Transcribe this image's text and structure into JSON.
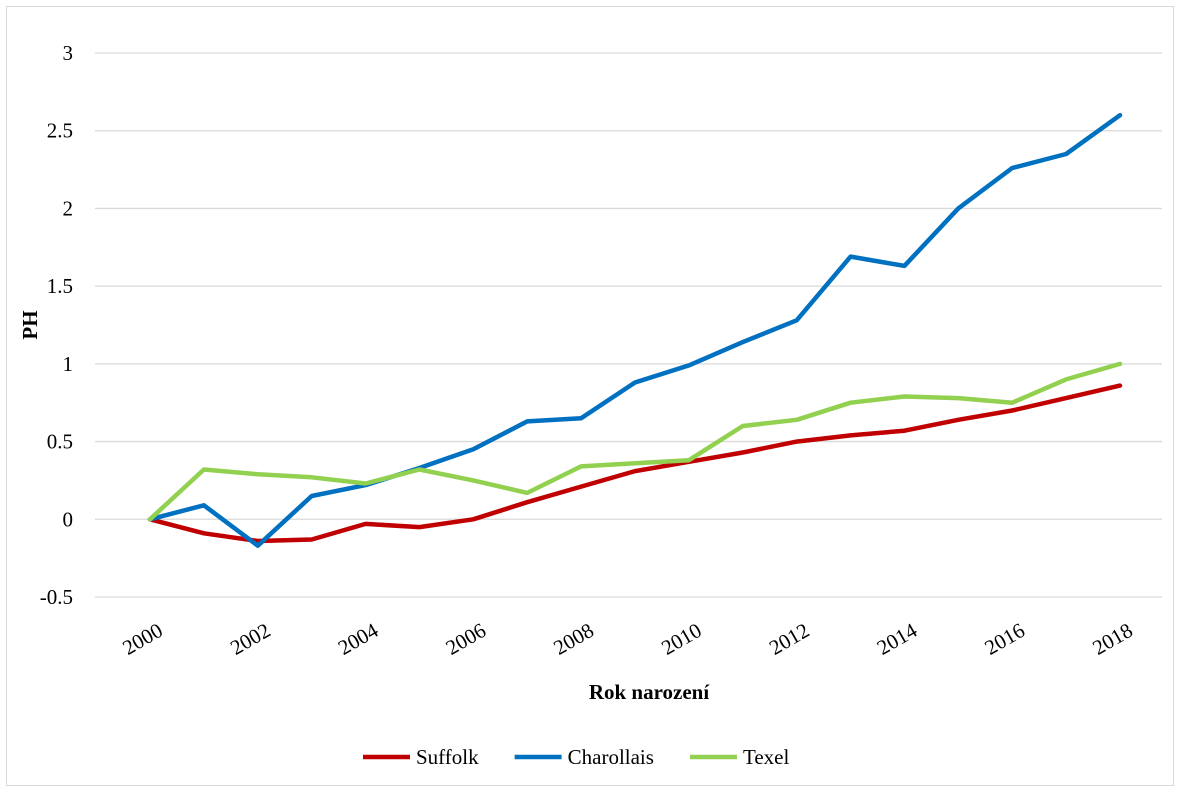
{
  "chart_data": {
    "type": "line",
    "title": "",
    "xlabel": "Rok narození",
    "ylabel": "PH",
    "ylim": [
      -0.5,
      3
    ],
    "yticks": [
      "-0.5",
      "0",
      "0.5",
      "1",
      "1.5",
      "2",
      "2.5",
      "3"
    ],
    "ytick_values": [
      -0.5,
      0,
      0.5,
      1,
      1.5,
      2,
      2.5,
      3
    ],
    "x": [
      2000,
      2001,
      2002,
      2003,
      2004,
      2005,
      2006,
      2007,
      2008,
      2009,
      2010,
      2011,
      2012,
      2013,
      2014,
      2015,
      2016,
      2017,
      2018
    ],
    "xtick_labels": [
      "2000",
      "2002",
      "2004",
      "2006",
      "2008",
      "2010",
      "2012",
      "2014",
      "2016",
      "2018"
    ],
    "grid": "horizontal",
    "legend_position": "bottom",
    "series": [
      {
        "name": "Suffolk",
        "color": "#c00000",
        "values": [
          0,
          -0.09,
          -0.14,
          -0.13,
          -0.03,
          -0.05,
          0,
          0.11,
          0.21,
          0.31,
          0.37,
          0.43,
          0.5,
          0.54,
          0.57,
          0.64,
          0.7,
          0.78,
          0.86
        ]
      },
      {
        "name": "Charollais",
        "color": "#0070c0",
        "values": [
          0,
          0.09,
          -0.17,
          0.15,
          0.22,
          0.33,
          0.45,
          0.63,
          0.65,
          0.88,
          0.99,
          1.14,
          1.28,
          1.69,
          1.63,
          2.0,
          2.26,
          2.35,
          2.6
        ]
      },
      {
        "name": "Texel",
        "color": "#92d050",
        "values": [
          0,
          0.32,
          0.29,
          0.27,
          0.23,
          0.32,
          0.25,
          0.17,
          0.34,
          0.36,
          0.38,
          0.6,
          0.64,
          0.75,
          0.79,
          0.78,
          0.75,
          0.9,
          1.0
        ]
      }
    ]
  }
}
